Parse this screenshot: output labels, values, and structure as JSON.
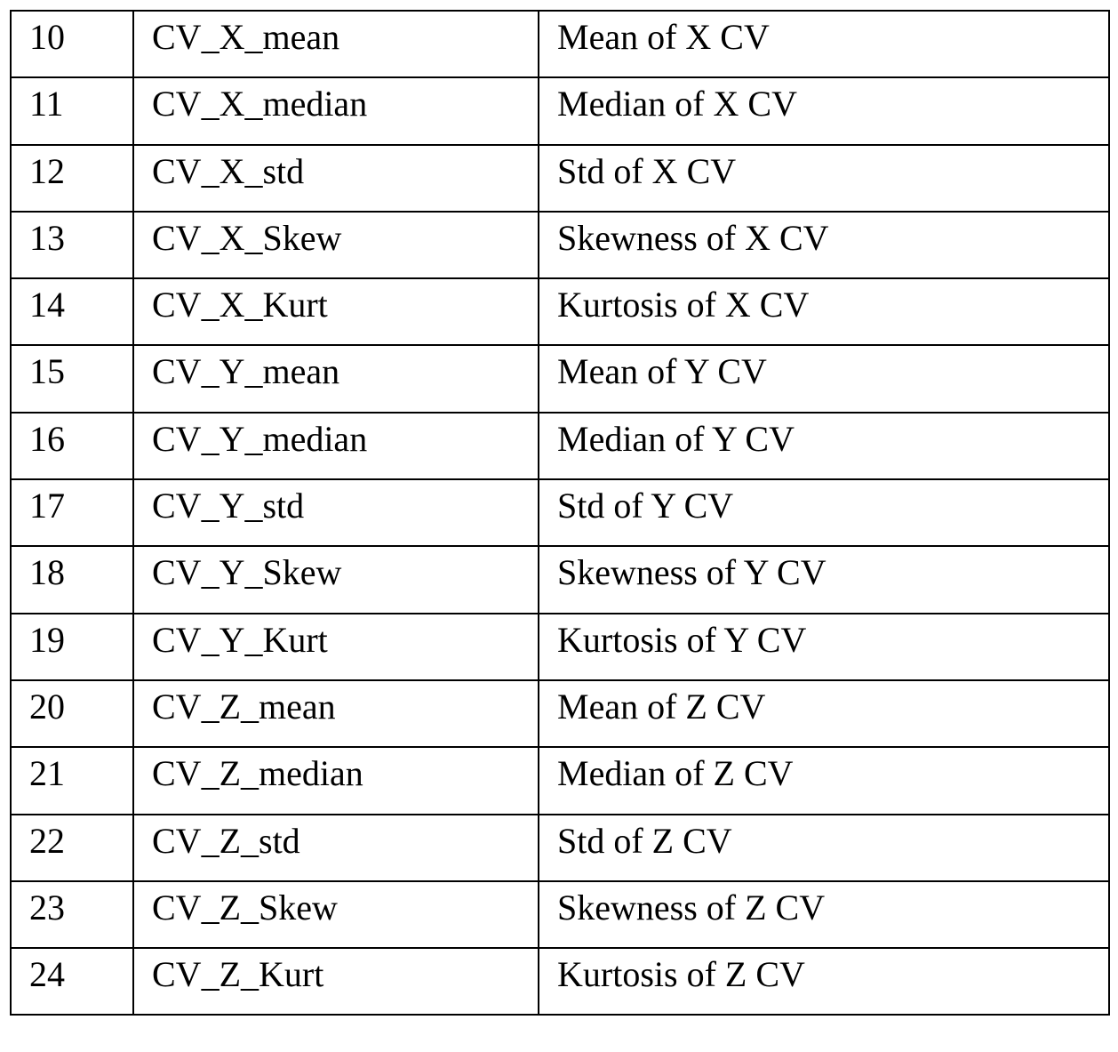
{
  "table": {
    "rows": [
      {
        "num": "10",
        "name": "CV_X_mean",
        "desc": "Mean of X CV"
      },
      {
        "num": "11",
        "name": "CV_X_median",
        "desc": "Median of X CV"
      },
      {
        "num": "12",
        "name": "CV_X_std",
        "desc": "Std of X CV"
      },
      {
        "num": "13",
        "name": "CV_X_Skew",
        "desc": "Skewness of X CV"
      },
      {
        "num": "14",
        "name": "CV_X_Kurt",
        "desc": "Kurtosis of X CV"
      },
      {
        "num": "15",
        "name": "CV_Y_mean",
        "desc": "Mean of Y CV"
      },
      {
        "num": "16",
        "name": "CV_Y_median",
        "desc": "Median of Y CV"
      },
      {
        "num": "17",
        "name": "CV_Y_std",
        "desc": "Std of Y CV"
      },
      {
        "num": "18",
        "name": "CV_Y_Skew",
        "desc": "Skewness of Y CV"
      },
      {
        "num": "19",
        "name": "CV_Y_Kurt",
        "desc": "Kurtosis of Y CV"
      },
      {
        "num": "20",
        "name": "CV_Z_mean",
        "desc": "Mean of Z CV"
      },
      {
        "num": "21",
        "name": "CV_Z_median",
        "desc": "Median of Z CV"
      },
      {
        "num": "22",
        "name": "CV_Z_std",
        "desc": "Std of Z CV"
      },
      {
        "num": "23",
        "name": "CV_Z_Skew",
        "desc": "Skewness of Z CV"
      },
      {
        "num": "24",
        "name": "CV_Z_Kurt",
        "desc": "Kurtosis of Z CV"
      }
    ]
  }
}
